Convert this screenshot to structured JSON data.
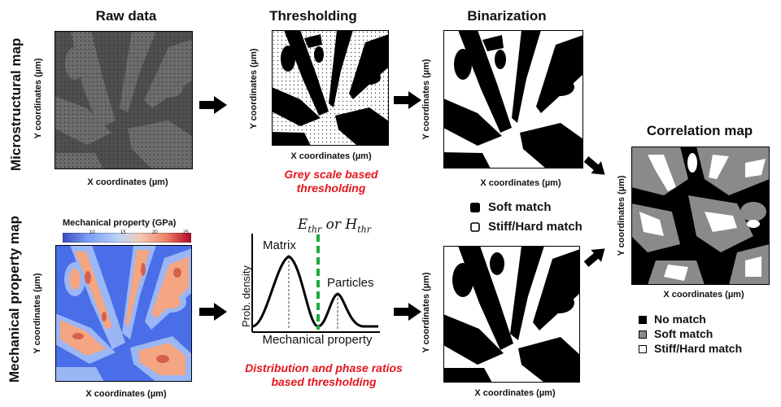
{
  "columns": {
    "raw": "Raw data",
    "thresholding": "Thresholding",
    "binarization": "Binarization",
    "correlation": "Correlation map"
  },
  "rows": {
    "micro": "Microstructural map",
    "mech": "Mechanical property map"
  },
  "axes": {
    "x": "X coordinates (µm)",
    "y": "Y coordinates (µm)"
  },
  "colorbar": {
    "title": "Mechanical property (GPa)",
    "ticks": [
      "10",
      "15",
      "20",
      "25"
    ],
    "colors": [
      "#3b4cc0",
      "#7b9ff9",
      "#c0d4f5",
      "#f2cbb7",
      "#ee8468",
      "#b40426"
    ]
  },
  "threshold_notes": {
    "micro": "Grey scale based thresholding",
    "mech": "Distribution and phase ratios based thresholding"
  },
  "distribution": {
    "threshold_label": "E_thr or H_thr",
    "peak1": "Matrix",
    "peak2": "Particles",
    "ylabel": "Prob. density",
    "xlabel": "Mechanical property"
  },
  "binarization_legend": {
    "soft": "Soft match",
    "stiff": "Stiff/Hard match"
  },
  "correlation_legend": {
    "none": "No match",
    "soft": "Soft match",
    "stiff": "Stiff/Hard match"
  }
}
